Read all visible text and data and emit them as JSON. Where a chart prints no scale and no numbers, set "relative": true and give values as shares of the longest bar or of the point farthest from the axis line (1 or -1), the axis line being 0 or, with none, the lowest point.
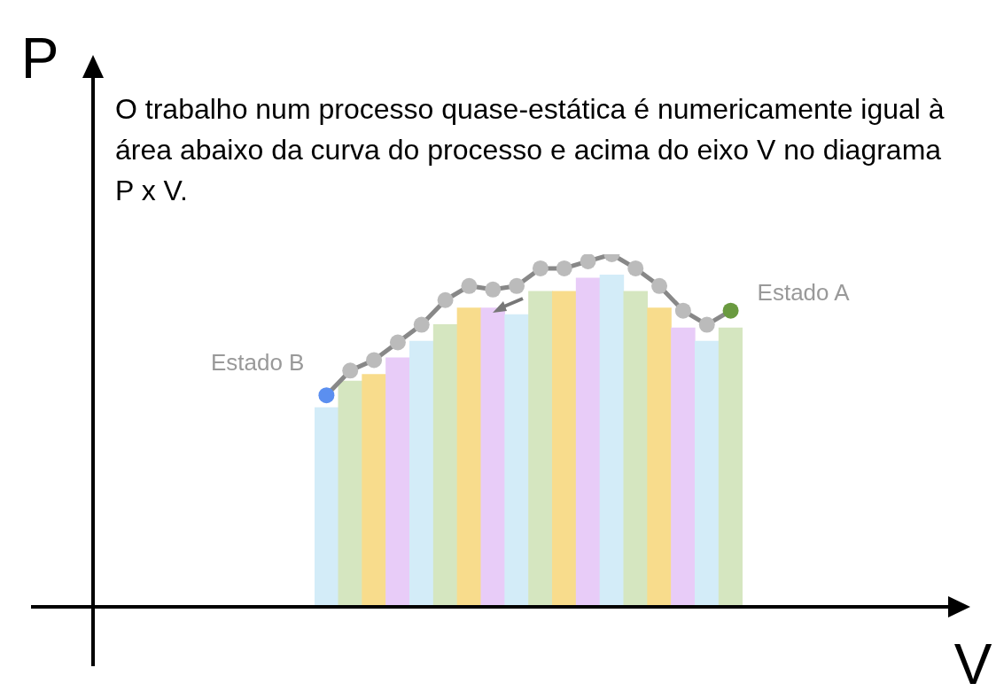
{
  "chart_data": [
    {
      "type": "bar",
      "relative": true,
      "title": "O trabalho num processo quase-estática  é  numericamente igual à área abaixo da curva do processo e acima do eixo V no diagrama P x V.",
      "xlabel": "V",
      "ylabel": "P",
      "categories": [
        null,
        null,
        null,
        null,
        null,
        null,
        null,
        null,
        null,
        null,
        null,
        null,
        null,
        null,
        null,
        null,
        null,
        null
      ],
      "values": [
        0.6,
        0.68,
        0.7,
        0.75,
        0.8,
        0.85,
        0.9,
        0.9,
        0.88,
        0.95,
        0.95,
        0.99,
        1.0,
        0.95,
        0.9,
        0.84,
        0.8,
        0.84
      ],
      "colors": [
        "#d3ecf8",
        "#d5e6c0",
        "#f8dc8c",
        "#e8ccf8",
        "#d3ecf8",
        "#d5e6c0",
        "#f8dc8c",
        "#e8ccf8",
        "#d3ecf8",
        "#d5e6c0",
        "#f8dc8c",
        "#e8ccf8",
        "#d3ecf8",
        "#d5e6c0",
        "#f8dc8c",
        "#e8ccf8",
        "#d3ecf8",
        "#d5e6c0"
      ]
    },
    {
      "type": "line",
      "relative": true,
      "marker": "circle",
      "categories": [
        null,
        null,
        null,
        null,
        null,
        null,
        null,
        null,
        null,
        null,
        null,
        null,
        null,
        null,
        null,
        null,
        null,
        null
      ],
      "annotations": [
        "Estado A",
        "Estado B"
      ],
      "color": "#888888",
      "values": [
        0.6,
        0.67,
        0.7,
        0.75,
        0.8,
        0.87,
        0.91,
        0.9,
        0.91,
        0.96,
        0.96,
        0.98,
        1.0,
        0.96,
        0.91,
        0.84,
        0.8,
        0.84
      ],
      "colors": [
        "#5b8ff0",
        "#bbbbbb",
        "#bbbbbb",
        "#bbbbbb",
        "#bbbbbb",
        "#bbbbbb",
        "#bbbbbb",
        "#bbbbbb",
        "#bbbbbb",
        "#bbbbbb",
        "#bbbbbb",
        "#bbbbbb",
        "#bbbbbb",
        "#bbbbbb",
        "#bbbbbb",
        "#bbbbbb",
        "#bbbbbb",
        "#6a9a40"
      ]
    }
  ]
}
